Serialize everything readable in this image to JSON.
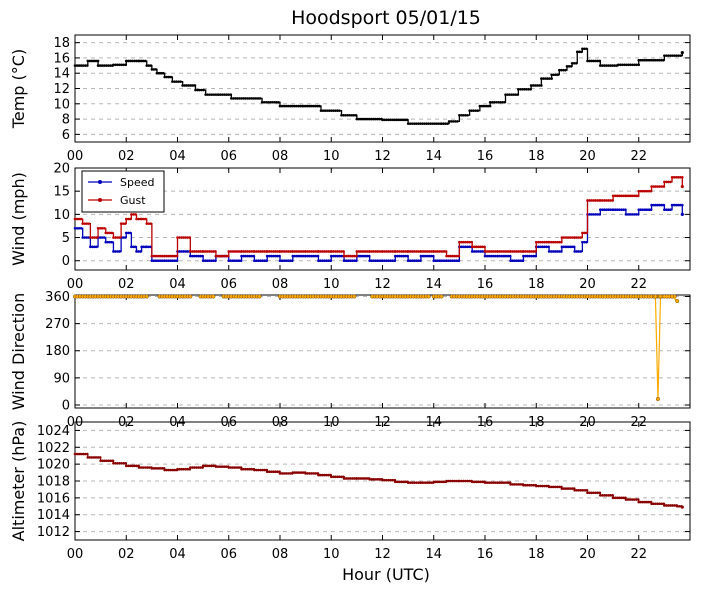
{
  "chart_data": {
    "title": "Hoodsport 05/01/15",
    "xlabel": "Hour (UTC)",
    "x_ticks": [
      "00",
      "02",
      "04",
      "06",
      "08",
      "10",
      "12",
      "14",
      "16",
      "18",
      "20",
      "22"
    ],
    "x_range_hours": [
      0,
      24
    ],
    "panels": [
      {
        "type": "line",
        "ylabel": "Temp ($^\\circ$C)",
        "ylabel_display": "Temp (°C)",
        "ylim": [
          5,
          19
        ],
        "yticks": [
          6,
          8,
          10,
          12,
          14,
          16,
          18
        ],
        "grid": true,
        "series": [
          {
            "color": "#000000",
            "x": [
              0,
              0.5,
              0.9,
              1.5,
              2.0,
              2.5,
              2.8,
              3.0,
              3.2,
              3.5,
              3.8,
              4.2,
              4.7,
              5.1,
              5.6,
              6.1,
              6.9,
              7.3,
              8.0,
              8.9,
              9.6,
              10.4,
              11.0,
              12.0,
              13.0,
              13.8,
              14.3,
              14.6,
              15.0,
              15.4,
              15.8,
              16.2,
              16.8,
              17.3,
              17.8,
              18.2,
              18.6,
              18.9,
              19.2,
              19.4,
              19.6,
              19.8,
              20.0,
              20.5,
              21.2,
              22.0,
              23.0,
              23.7
            ],
            "y": [
              15.0,
              15.6,
              15.0,
              15.1,
              15.6,
              15.6,
              15.0,
              14.5,
              14.0,
              13.5,
              12.9,
              12.4,
              11.8,
              11.2,
              11.2,
              10.7,
              10.7,
              10.2,
              9.7,
              9.7,
              9.1,
              8.5,
              8.0,
              7.9,
              7.4,
              7.4,
              7.4,
              7.7,
              8.5,
              9.1,
              9.7,
              10.2,
              11.2,
              11.9,
              12.4,
              13.3,
              13.8,
              14.4,
              14.9,
              15.3,
              16.8,
              17.2,
              15.6,
              15.0,
              15.1,
              15.7,
              16.3,
              16.7
            ]
          }
        ]
      },
      {
        "type": "line",
        "ylabel": "Wind (mph)",
        "ylim": [
          -2,
          20
        ],
        "yticks": [
          0,
          5,
          10,
          15,
          20
        ],
        "grid": true,
        "legend": {
          "placement": "top-left"
        },
        "series": [
          {
            "name": "Speed",
            "color": "#0000bb",
            "x": [
              0,
              0.3,
              0.6,
              0.9,
              1.2,
              1.5,
              1.8,
              2.0,
              2.2,
              2.4,
              2.6,
              2.8,
              3.0,
              3.5,
              4.0,
              4.5,
              5.0,
              5.5,
              6.0,
              6.5,
              7.0,
              7.5,
              8.0,
              8.5,
              9.0,
              9.5,
              10.0,
              10.5,
              11.0,
              11.5,
              12.0,
              12.5,
              13.0,
              13.5,
              14.0,
              14.5,
              15.0,
              15.5,
              16.0,
              16.5,
              17.0,
              17.5,
              18.0,
              18.5,
              19.0,
              19.5,
              19.8,
              20.0,
              20.5,
              21.0,
              21.5,
              22.0,
              22.5,
              23.0,
              23.3,
              23.7
            ],
            "y": [
              7,
              5,
              3,
              5,
              4,
              2,
              5,
              6,
              3,
              2,
              3,
              3,
              0,
              0,
              2,
              1,
              0,
              1,
              0,
              1,
              0,
              1,
              0,
              1,
              1,
              0,
              1,
              0,
              1,
              0,
              0,
              1,
              0,
              1,
              0,
              0,
              3,
              2,
              1,
              1,
              0,
              1,
              3,
              2,
              3,
              2,
              4,
              10,
              11,
              11,
              10,
              11,
              12,
              11,
              12,
              10
            ]
          },
          {
            "name": "Gust",
            "color": "#bb0000",
            "x": [
              0,
              0.3,
              0.6,
              0.9,
              1.2,
              1.5,
              1.8,
              2.0,
              2.2,
              2.4,
              2.6,
              2.8,
              3.0,
              3.5,
              4.0,
              4.5,
              5.0,
              5.5,
              6.0,
              6.5,
              7.0,
              7.5,
              8.0,
              8.5,
              9.0,
              9.5,
              10.0,
              10.5,
              11.0,
              11.5,
              12.0,
              12.5,
              13.0,
              13.5,
              14.0,
              14.5,
              15.0,
              15.5,
              16.0,
              16.5,
              17.0,
              17.5,
              18.0,
              18.5,
              19.0,
              19.5,
              19.8,
              20.0,
              20.5,
              21.0,
              21.5,
              22.0,
              22.5,
              23.0,
              23.3,
              23.7
            ],
            "y": [
              9,
              8,
              5,
              7,
              6,
              5,
              8,
              9,
              10,
              9,
              9,
              8,
              1,
              1,
              5,
              2,
              2,
              1,
              2,
              2,
              2,
              2,
              2,
              2,
              2,
              2,
              2,
              1,
              2,
              2,
              2,
              2,
              2,
              2,
              2,
              1,
              4,
              3,
              2,
              2,
              2,
              2,
              4,
              4,
              5,
              5,
              6,
              13,
              13,
              14,
              14,
              15,
              16,
              17,
              18,
              16
            ]
          }
        ]
      },
      {
        "type": "scatter",
        "ylabel": "Wind Direction",
        "ylim": [
          -10,
          365
        ],
        "yticks": [
          0,
          90,
          180,
          270,
          360
        ],
        "grid": true,
        "series": [
          {
            "color": "#ffaa00",
            "note_segments": [
              [
                0,
                2.8
              ],
              [
                3.3,
                4.5
              ],
              [
                4.9,
                5.4
              ],
              [
                5.8,
                7.2
              ],
              [
                8.0,
                10.9
              ],
              [
                11.6,
                13.8
              ],
              [
                14.0,
                14.3
              ],
              [
                14.7,
                23.4
              ]
            ],
            "value": 360,
            "x": [
              22.65,
              22.75,
              22.85,
              23.3,
              23.5
            ],
            "y": [
              360,
              20,
              360,
              360,
              345
            ]
          }
        ]
      },
      {
        "type": "line",
        "ylabel": "Altimeter (hPa)",
        "ylim": [
          1011,
          1025
        ],
        "yticks": [
          1012,
          1014,
          1016,
          1018,
          1020,
          1022,
          1024
        ],
        "grid": true,
        "series": [
          {
            "color": "#880000",
            "x": [
              0,
              0.5,
              1.0,
              1.5,
              2.0,
              2.5,
              3.0,
              3.5,
              4.0,
              4.5,
              5.0,
              5.5,
              6.0,
              6.5,
              7.0,
              7.5,
              8.0,
              8.5,
              9.0,
              9.5,
              10.0,
              10.5,
              11.0,
              11.5,
              12.0,
              12.5,
              13.0,
              13.5,
              14.0,
              14.5,
              15.0,
              15.5,
              16.0,
              16.5,
              17.0,
              17.5,
              18.0,
              18.5,
              19.0,
              19.5,
              20.0,
              20.5,
              21.0,
              21.5,
              22.0,
              22.5,
              23.0,
              23.5,
              23.7
            ],
            "y": [
              1021.2,
              1020.8,
              1020.4,
              1020.1,
              1019.8,
              1019.6,
              1019.5,
              1019.3,
              1019.4,
              1019.6,
              1019.8,
              1019.7,
              1019.6,
              1019.4,
              1019.3,
              1019.1,
              1018.9,
              1019.0,
              1018.9,
              1018.7,
              1018.5,
              1018.3,
              1018.3,
              1018.2,
              1018.1,
              1017.9,
              1017.8,
              1017.8,
              1017.9,
              1018.0,
              1018.0,
              1017.9,
              1017.8,
              1017.8,
              1017.6,
              1017.5,
              1017.4,
              1017.3,
              1017.1,
              1016.9,
              1016.6,
              1016.3,
              1016.0,
              1015.8,
              1015.5,
              1015.3,
              1015.1,
              1015.0,
              1014.9
            ]
          }
        ]
      }
    ]
  }
}
